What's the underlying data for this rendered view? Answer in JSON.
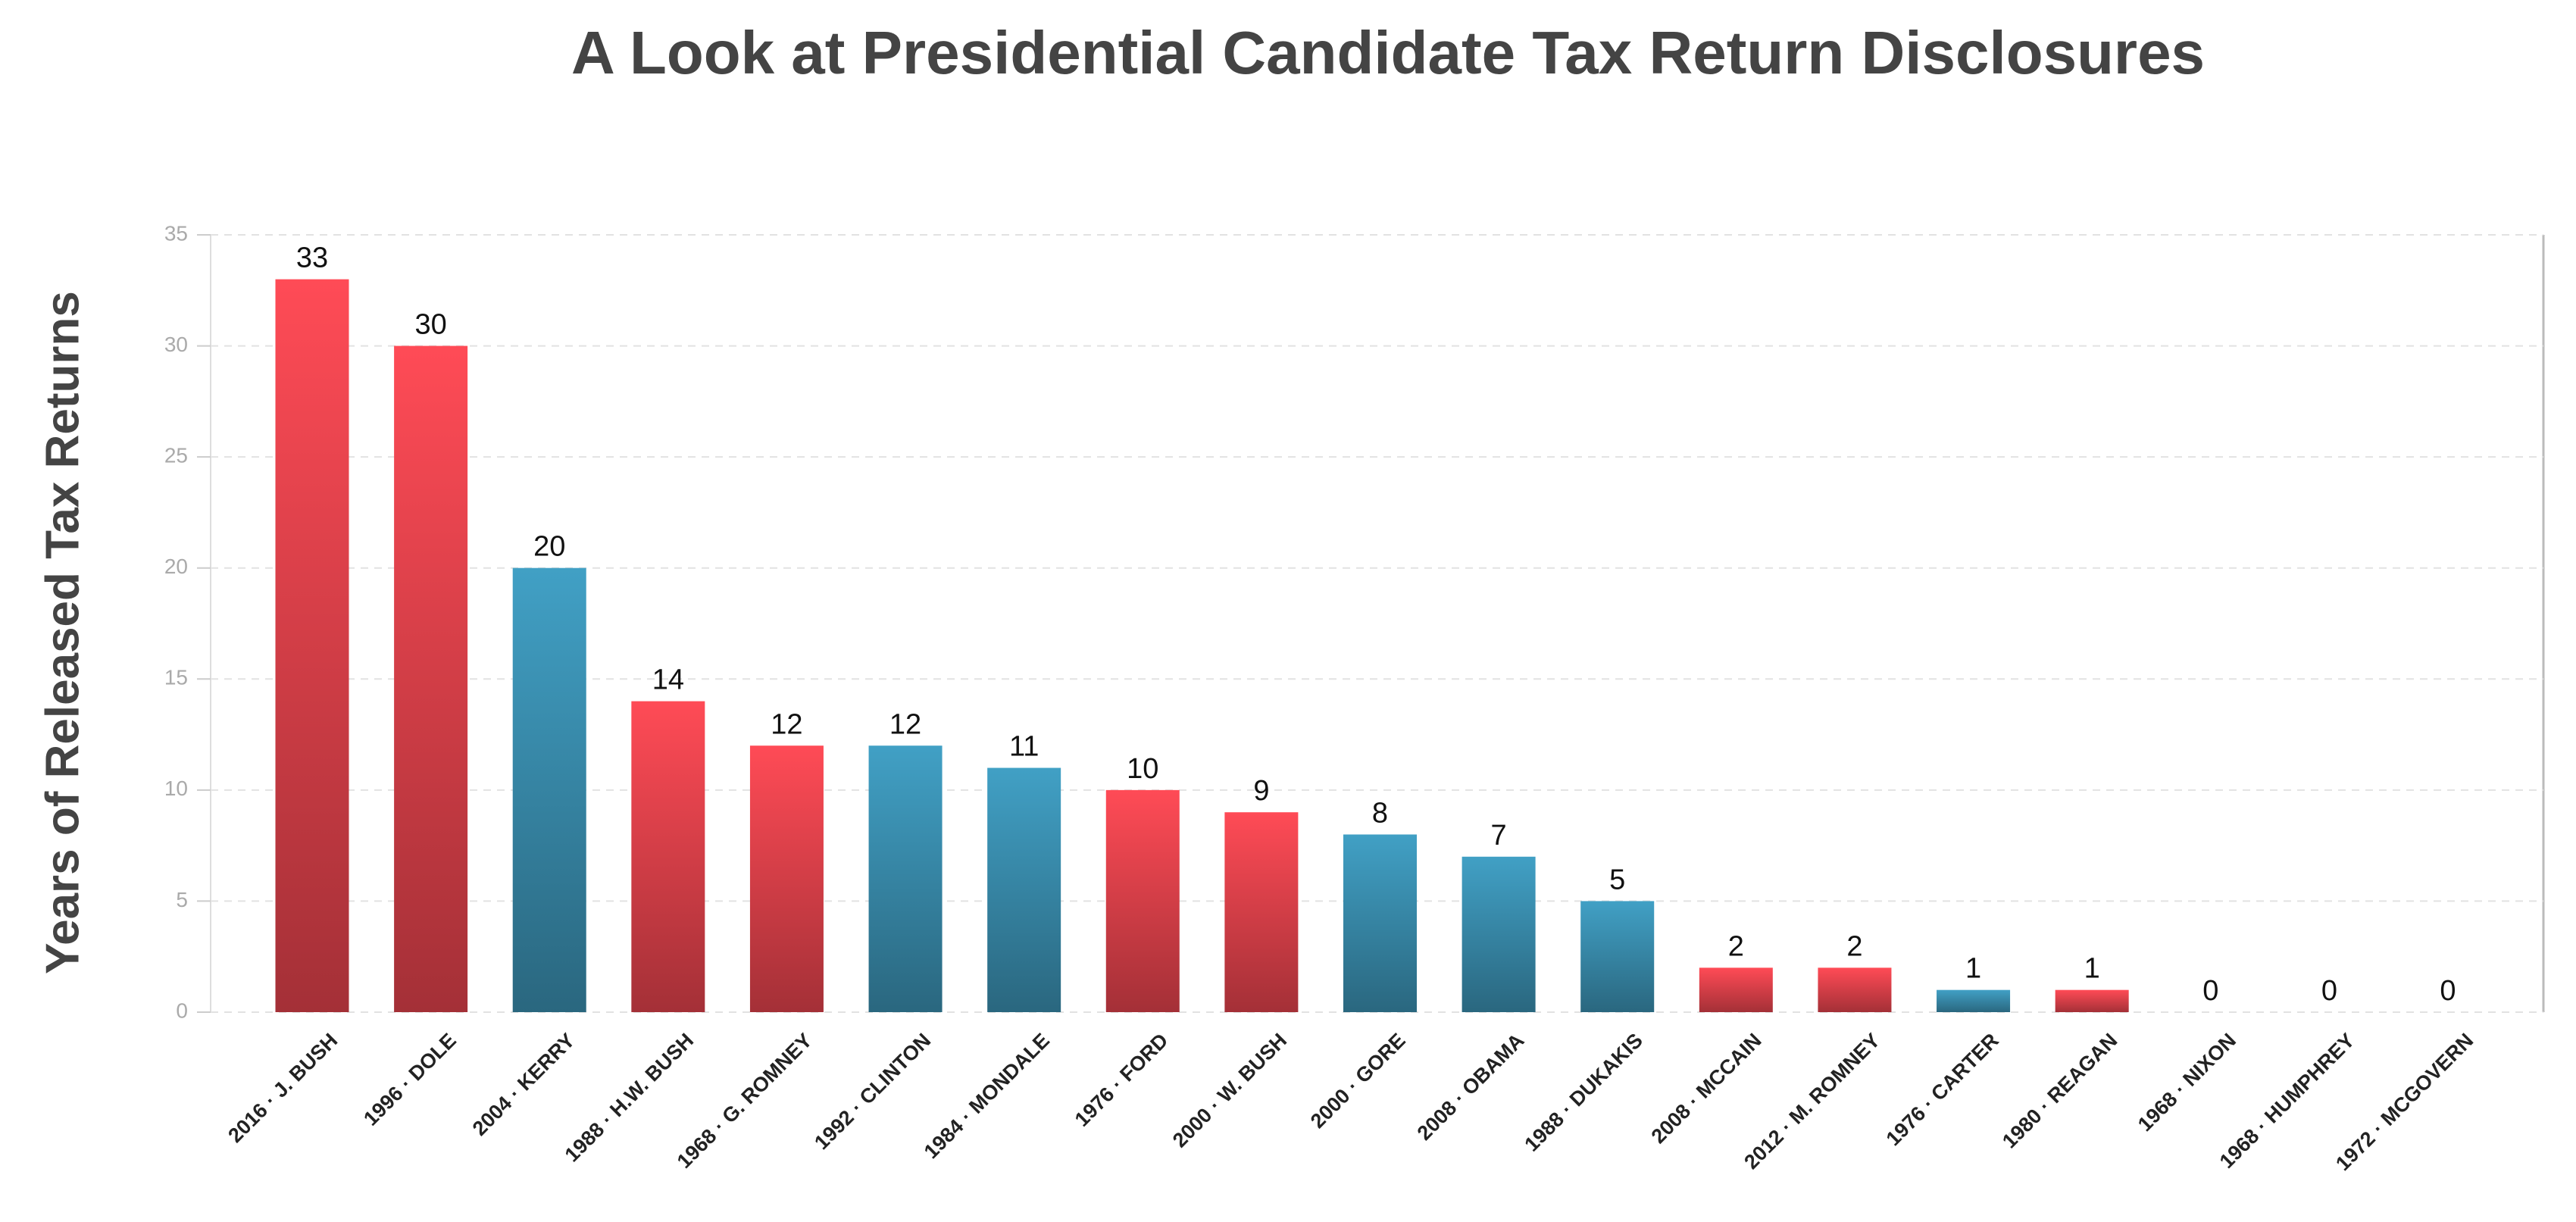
{
  "chart_data": {
    "type": "bar",
    "title": "A Look at Presidential Candidate Tax Return Disclosures",
    "y_label": "Years of Released Tax Returns",
    "categories": [
      "2016 · J. BUSH",
      "1996 · DOLE",
      "2004 · KERRY",
      "1988 · H.W. BUSH",
      "1968 · G. ROMNEY",
      "1992 · CLINTON",
      "1984 · MONDALE",
      "1976 · FORD",
      "2000 · W. BUSH",
      "2000 · GORE",
      "2008 · OBAMA",
      "1988 · DUKAKIS",
      "2008 · MCCAIN",
      "2012 · M. ROMNEY",
      "1976 · CARTER",
      "1980 · REAGAN",
      "1968 · NIXON",
      "1968 · HUMPHREY",
      "1972 · MCGOVERN"
    ],
    "values": [
      33,
      30,
      20,
      14,
      12,
      12,
      11,
      10,
      9,
      8,
      7,
      5,
      2,
      2,
      1,
      1,
      0,
      0,
      0
    ],
    "colors": [
      "#e4434d",
      "#e4434d",
      "#3a8fb0",
      "#e4434d",
      "#e4434d",
      "#3a8fb0",
      "#3a8fb0",
      "#e4434d",
      "#e4434d",
      "#3a8fb0",
      "#3a8fb0",
      "#3a8fb0",
      "#e4434d",
      "#e4434d",
      "#3a8fb0",
      "#e4434d",
      "#e4434d",
      "#3a8fb0",
      "#3a8fb0"
    ],
    "ylim": [
      0,
      35
    ],
    "yticks": [
      0,
      5,
      10,
      15,
      20,
      25,
      30,
      35
    ],
    "grid": true
  }
}
